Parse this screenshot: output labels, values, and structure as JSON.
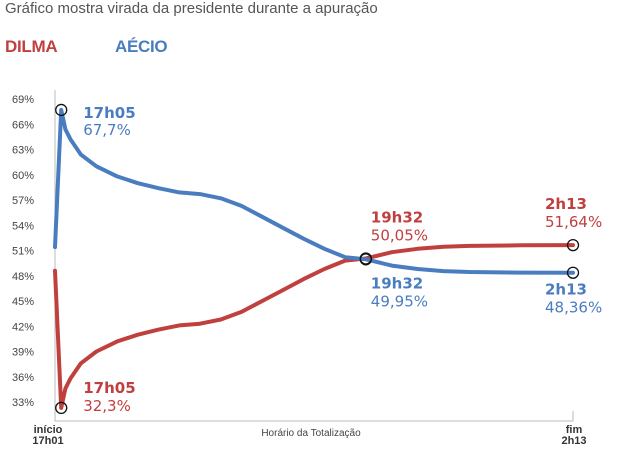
{
  "chart_data": {
    "type": "line",
    "title": "Gráfico mostra virada da presidente durante a apuração",
    "xlabel": "Horário da Totalização",
    "ylabel": "",
    "x_axis": {
      "start_label": [
        "início",
        "17h01"
      ],
      "end_label": [
        "fim",
        "2h13"
      ],
      "range": [
        0,
        1
      ],
      "unit": "fração da apuração (estimada)"
    },
    "yticks": [
      "69%",
      "66%",
      "63%",
      "60%",
      "57%",
      "54%",
      "51%",
      "48%",
      "45%",
      "42%",
      "39%",
      "36%",
      "33%"
    ],
    "ylim": [
      31,
      69
    ],
    "grid": false,
    "legend_position": "top-left",
    "series": [
      {
        "name": "DILMA",
        "color": "#c0403f",
        "points": [
          [
            0.0,
            48.6
          ],
          [
            0.012,
            32.3
          ],
          [
            0.02,
            34.6
          ],
          [
            0.03,
            35.8
          ],
          [
            0.05,
            37.6
          ],
          [
            0.08,
            39.0
          ],
          [
            0.12,
            40.2
          ],
          [
            0.16,
            41.0
          ],
          [
            0.2,
            41.6
          ],
          [
            0.24,
            42.1
          ],
          [
            0.28,
            42.3
          ],
          [
            0.32,
            42.8
          ],
          [
            0.36,
            43.7
          ],
          [
            0.4,
            45.0
          ],
          [
            0.44,
            46.3
          ],
          [
            0.48,
            47.6
          ],
          [
            0.52,
            48.8
          ],
          [
            0.56,
            49.8
          ],
          [
            0.6,
            50.05
          ],
          [
            0.65,
            50.8
          ],
          [
            0.7,
            51.2
          ],
          [
            0.75,
            51.45
          ],
          [
            0.8,
            51.55
          ],
          [
            0.9,
            51.62
          ],
          [
            1.0,
            51.64
          ]
        ]
      },
      {
        "name": "AÉCIO",
        "color": "#4a7dbf",
        "points": [
          [
            0.0,
            51.4
          ],
          [
            0.012,
            67.7
          ],
          [
            0.02,
            65.4
          ],
          [
            0.03,
            64.2
          ],
          [
            0.05,
            62.4
          ],
          [
            0.08,
            61.0
          ],
          [
            0.12,
            59.8
          ],
          [
            0.16,
            59.0
          ],
          [
            0.2,
            58.4
          ],
          [
            0.24,
            57.9
          ],
          [
            0.28,
            57.7
          ],
          [
            0.32,
            57.2
          ],
          [
            0.36,
            56.3
          ],
          [
            0.4,
            55.0
          ],
          [
            0.44,
            53.7
          ],
          [
            0.48,
            52.4
          ],
          [
            0.52,
            51.2
          ],
          [
            0.56,
            50.2
          ],
          [
            0.6,
            49.95
          ],
          [
            0.65,
            49.2
          ],
          [
            0.7,
            48.8
          ],
          [
            0.75,
            48.55
          ],
          [
            0.8,
            48.45
          ],
          [
            0.9,
            48.38
          ],
          [
            1.0,
            48.36
          ]
        ]
      }
    ],
    "annotations": [
      {
        "series": "AÉCIO",
        "x": 0.012,
        "y": 67.7,
        "time": "17h05",
        "value": "67,7%",
        "placement": "right"
      },
      {
        "series": "DILMA",
        "x": 0.012,
        "y": 32.3,
        "time": "17h05",
        "value": "32,3%",
        "placement": "right"
      },
      {
        "series": "DILMA",
        "x": 0.6,
        "y": 50.05,
        "time": "19h32",
        "value": "50,05%",
        "placement": "above"
      },
      {
        "series": "AÉCIO",
        "x": 0.6,
        "y": 49.95,
        "time": "19h32",
        "value": "49,95%",
        "placement": "below"
      },
      {
        "series": "DILMA",
        "x": 1.0,
        "y": 51.64,
        "time": "2h13",
        "value": "51,64%",
        "placement": "above"
      },
      {
        "series": "AÉCIO",
        "x": 1.0,
        "y": 48.36,
        "time": "2h13",
        "value": "48,36%",
        "placement": "below"
      }
    ]
  },
  "header": {
    "subtitle": "Gráfico mostra virada da presidente durante a apuração"
  },
  "legend": {
    "dilma": "DILMA",
    "aecio": "AÉCIO"
  }
}
